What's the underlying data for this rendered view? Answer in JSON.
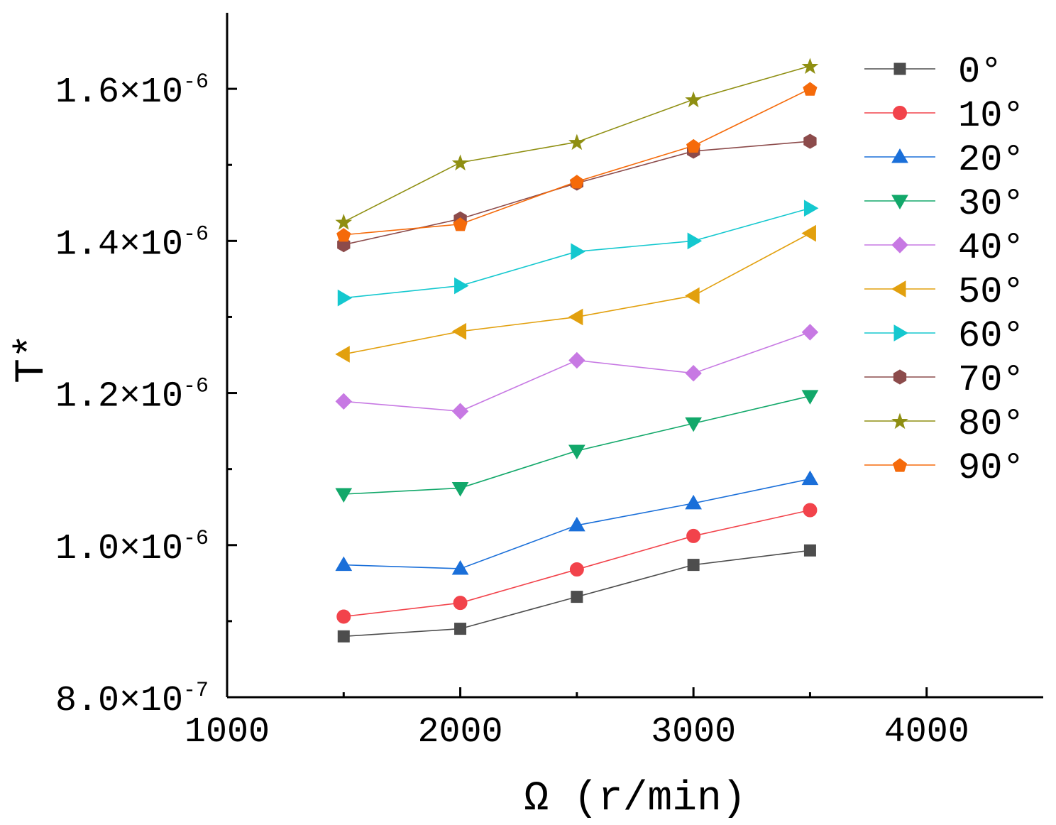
{
  "chart_data": {
    "type": "line",
    "title": "",
    "xlabel": "Ω  (r/min)",
    "ylabel": "T*",
    "xlim": [
      1000,
      4500
    ],
    "ylim": [
      8e-07,
      1.7e-06
    ],
    "x_ticks": [
      1000,
      2000,
      3000,
      4000
    ],
    "x_tick_labels": [
      "1000",
      "2000",
      "3000",
      "4000"
    ],
    "y_ticks": [
      {
        "value": 8e-07,
        "mantissa": "8.0",
        "exponent": "-7"
      },
      {
        "value": 1e-06,
        "mantissa": "1.0",
        "exponent": "-6"
      },
      {
        "value": 1.2e-06,
        "mantissa": "1.2",
        "exponent": "-6"
      },
      {
        "value": 1.4e-06,
        "mantissa": "1.4",
        "exponent": "-6"
      },
      {
        "value": 1.6e-06,
        "mantissa": "1.6",
        "exponent": "-6"
      }
    ],
    "y_minor_ticks": [
      9e-07,
      1.1e-06,
      1.3e-06,
      1.5e-06
    ],
    "times_symbol": "×10",
    "grid": false,
    "legend_position": "right",
    "x": [
      1500,
      2000,
      2500,
      3000,
      3500
    ],
    "series": [
      {
        "name": "0°",
        "color": "#4d4d4d",
        "marker": "square",
        "values": [
          8.8e-07,
          8.9e-07,
          9.32e-07,
          9.74e-07,
          9.93e-07
        ]
      },
      {
        "name": "10°",
        "color": "#f2434b",
        "marker": "circle",
        "values": [
          9.06e-07,
          9.24e-07,
          9.68e-07,
          1.012e-06,
          1.046e-06
        ]
      },
      {
        "name": "20°",
        "color": "#1a6fd9",
        "marker": "triangle-up",
        "values": [
          9.74e-07,
          9.69e-07,
          1.026e-06,
          1.055e-06,
          1.087e-06
        ]
      },
      {
        "name": "30°",
        "color": "#12a86a",
        "marker": "triangle-down",
        "values": [
          1.067e-06,
          1.075e-06,
          1.124e-06,
          1.16e-06,
          1.196e-06
        ]
      },
      {
        "name": "40°",
        "color": "#c779e3",
        "marker": "diamond",
        "values": [
          1.189e-06,
          1.176e-06,
          1.243e-06,
          1.226e-06,
          1.28e-06
        ]
      },
      {
        "name": "50°",
        "color": "#e2a00e",
        "marker": "triangle-left",
        "values": [
          1.251e-06,
          1.281e-06,
          1.3e-06,
          1.328e-06,
          1.41e-06
        ]
      },
      {
        "name": "60°",
        "color": "#14c8cf",
        "marker": "triangle-right",
        "values": [
          1.325e-06,
          1.341e-06,
          1.386e-06,
          1.4e-06,
          1.443e-06
        ]
      },
      {
        "name": "70°",
        "color": "#8c4b4b",
        "marker": "hexagon",
        "values": [
          1.395e-06,
          1.429e-06,
          1.476e-06,
          1.518e-06,
          1.531e-06
        ]
      },
      {
        "name": "80°",
        "color": "#8f8f12",
        "marker": "star",
        "values": [
          1.425e-06,
          1.503e-06,
          1.53e-06,
          1.586e-06,
          1.63e-06
        ]
      },
      {
        "name": "90°",
        "color": "#f56a0a",
        "marker": "pentagon",
        "values": [
          1.408e-06,
          1.422e-06,
          1.478e-06,
          1.525e-06,
          1.6e-06
        ]
      }
    ]
  }
}
